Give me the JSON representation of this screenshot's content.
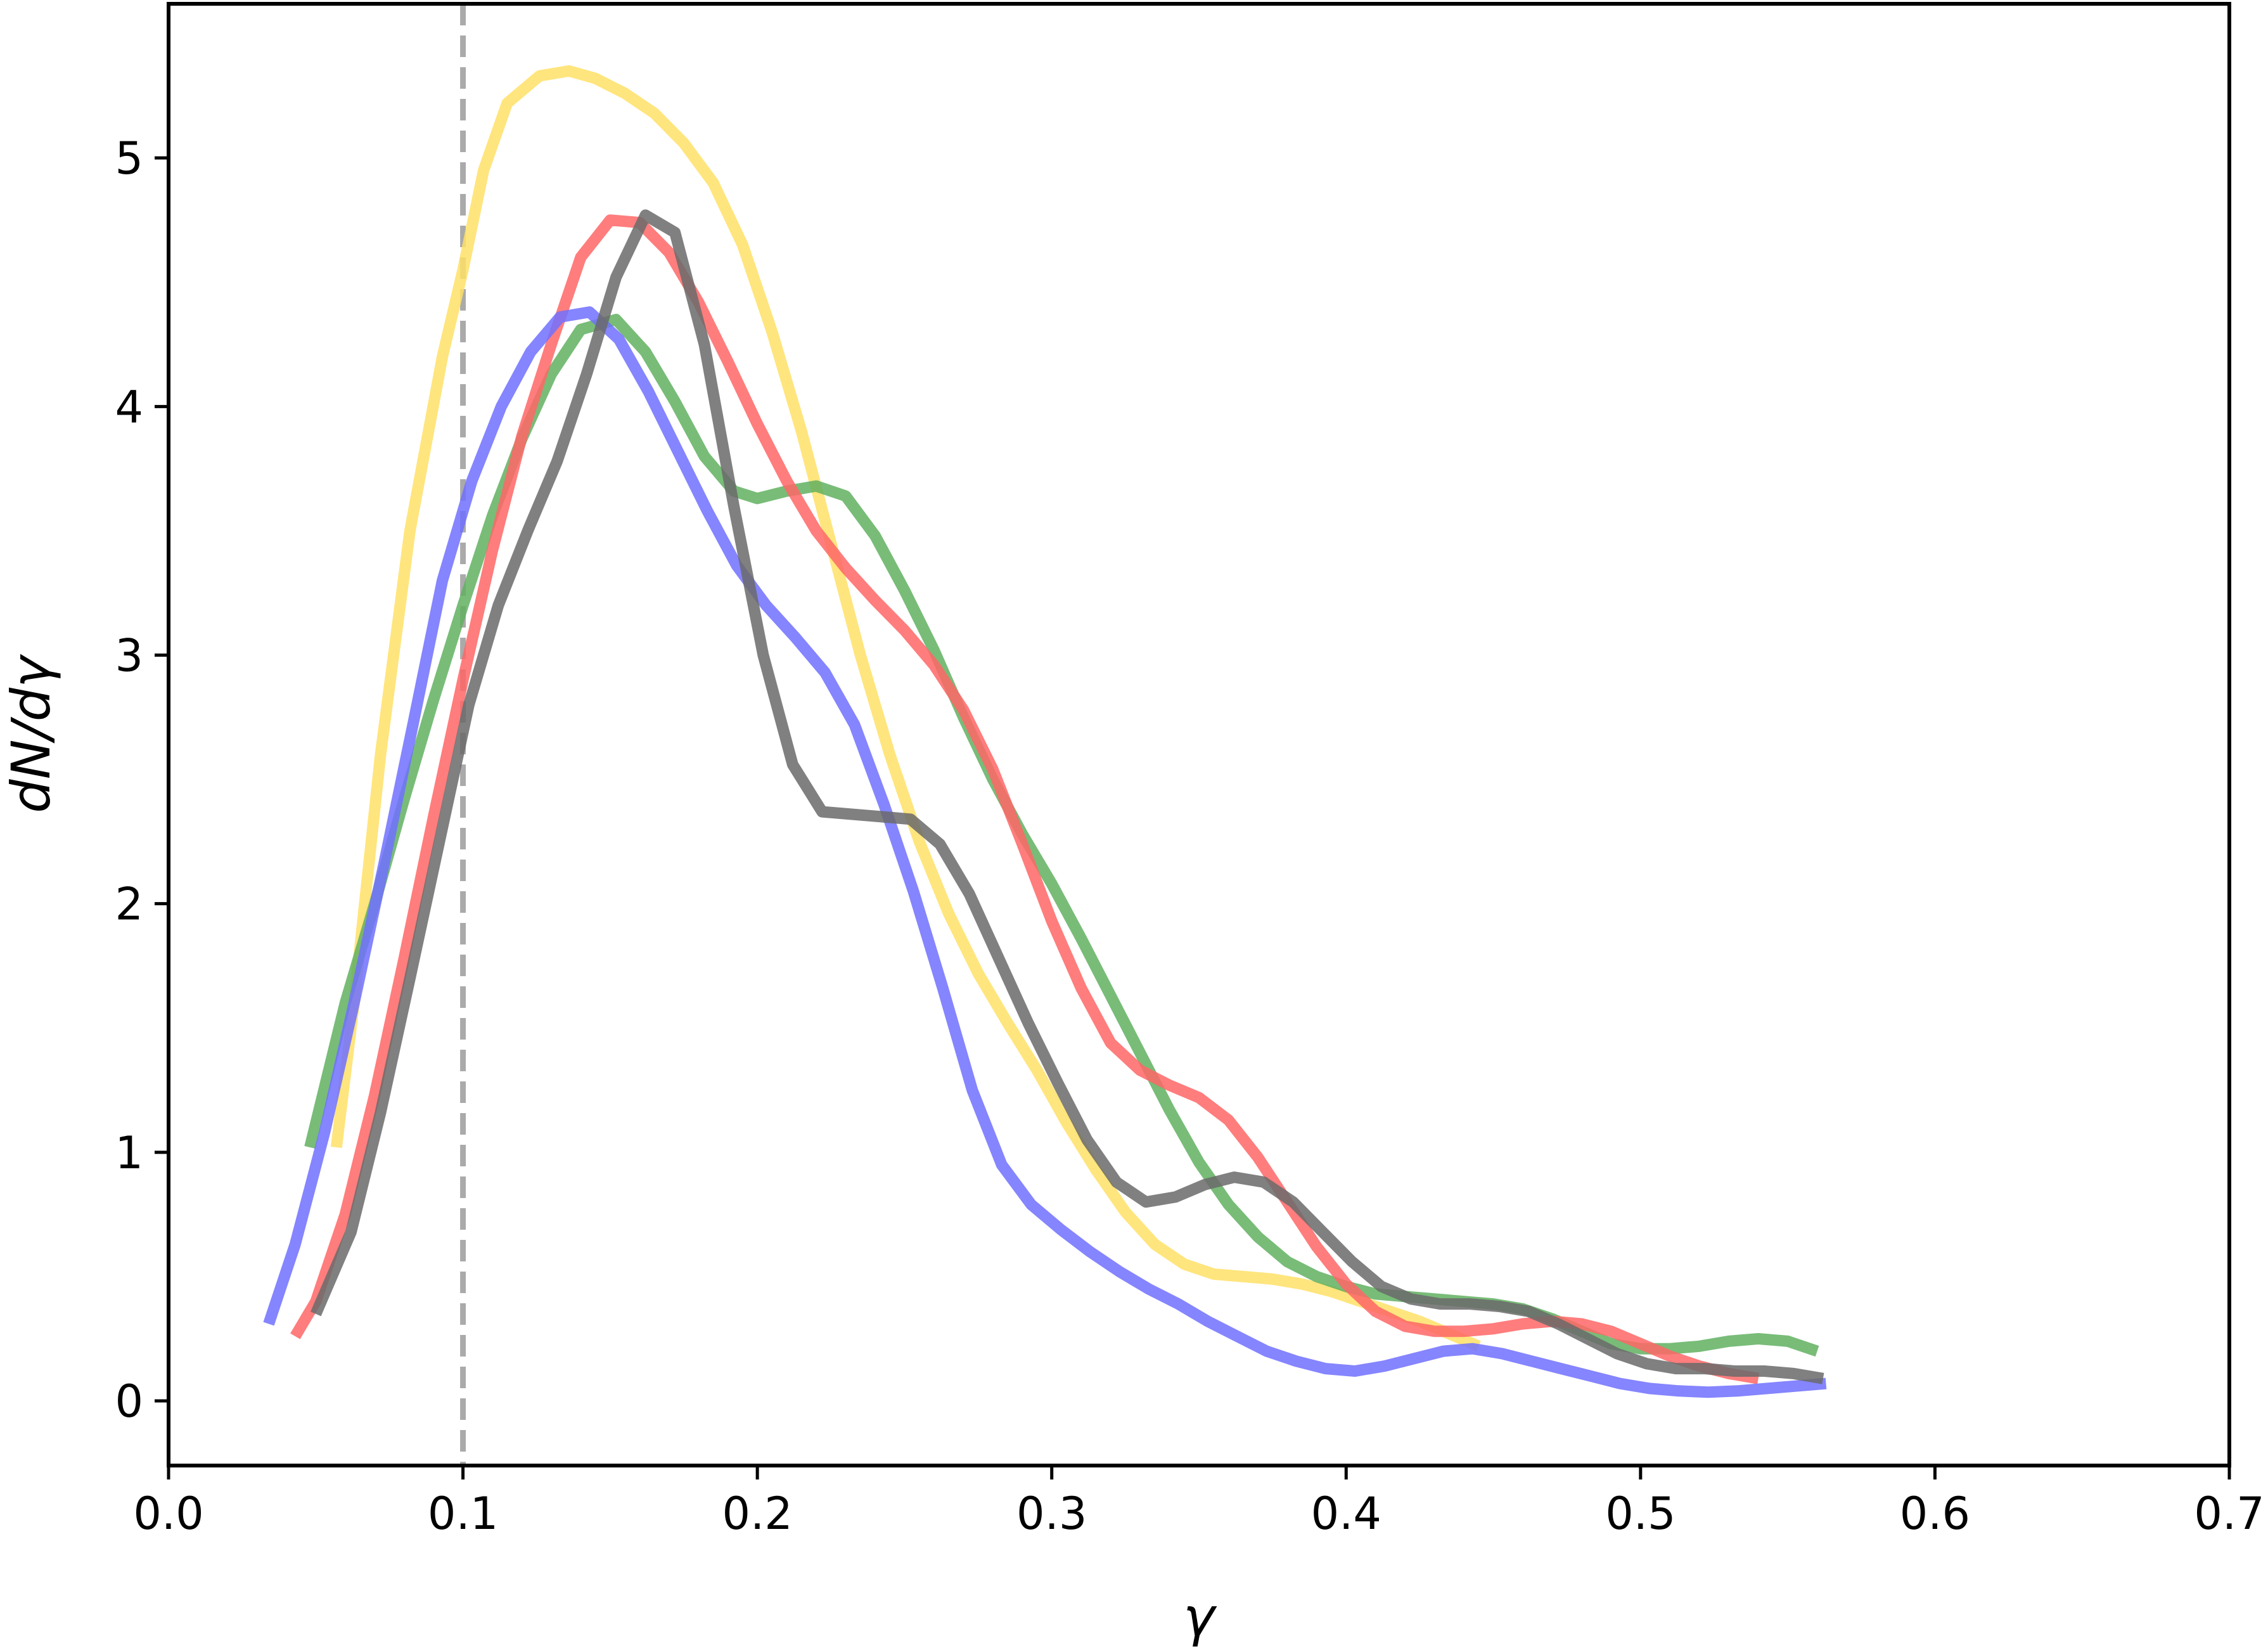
{
  "chart_data": {
    "type": "line",
    "title": "",
    "xlabel": "γ",
    "ylabel": "dN/dγ",
    "xlim": [
      0.0,
      0.7
    ],
    "ylim": [
      -0.26,
      5.62
    ],
    "xticks": [
      "0.0",
      "0.1",
      "0.2",
      "0.3",
      "0.4",
      "0.5",
      "0.6",
      "0.7"
    ],
    "yticks": [
      "0",
      "1",
      "2",
      "3",
      "4",
      "5"
    ],
    "grid": false,
    "legend": false,
    "reference_line": {
      "x": 0.1,
      "style": "dashed",
      "color": "#aaaaaa"
    },
    "series": [
      {
        "color": "#ffe066",
        "points": [
          [
            0.057,
            1.02
          ],
          [
            0.063,
            1.6
          ],
          [
            0.072,
            2.6
          ],
          [
            0.082,
            3.5
          ],
          [
            0.093,
            4.2
          ],
          [
            0.1,
            4.55
          ],
          [
            0.107,
            4.95
          ],
          [
            0.115,
            5.22
          ],
          [
            0.126,
            5.33
          ],
          [
            0.136,
            5.35
          ],
          [
            0.145,
            5.32
          ],
          [
            0.155,
            5.26
          ],
          [
            0.165,
            5.18
          ],
          [
            0.175,
            5.06
          ],
          [
            0.185,
            4.9
          ],
          [
            0.195,
            4.65
          ],
          [
            0.205,
            4.3
          ],
          [
            0.215,
            3.9
          ],
          [
            0.225,
            3.45
          ],
          [
            0.235,
            3.0
          ],
          [
            0.245,
            2.6
          ],
          [
            0.255,
            2.25
          ],
          [
            0.265,
            1.96
          ],
          [
            0.275,
            1.72
          ],
          [
            0.285,
            1.52
          ],
          [
            0.295,
            1.33
          ],
          [
            0.305,
            1.12
          ],
          [
            0.315,
            0.93
          ],
          [
            0.325,
            0.76
          ],
          [
            0.335,
            0.63
          ],
          [
            0.345,
            0.55
          ],
          [
            0.355,
            0.51
          ],
          [
            0.365,
            0.5
          ],
          [
            0.375,
            0.49
          ],
          [
            0.385,
            0.47
          ],
          [
            0.395,
            0.44
          ],
          [
            0.405,
            0.4
          ],
          [
            0.415,
            0.36
          ],
          [
            0.425,
            0.32
          ],
          [
            0.435,
            0.27
          ],
          [
            0.445,
            0.22
          ]
        ]
      },
      {
        "color": "#60b060",
        "points": [
          [
            0.048,
            1.02
          ],
          [
            0.06,
            1.6
          ],
          [
            0.07,
            2.0
          ],
          [
            0.08,
            2.42
          ],
          [
            0.09,
            2.82
          ],
          [
            0.1,
            3.2
          ],
          [
            0.11,
            3.56
          ],
          [
            0.12,
            3.87
          ],
          [
            0.13,
            4.13
          ],
          [
            0.14,
            4.31
          ],
          [
            0.152,
            4.35
          ],
          [
            0.162,
            4.22
          ],
          [
            0.172,
            4.02
          ],
          [
            0.182,
            3.8
          ],
          [
            0.192,
            3.66
          ],
          [
            0.2,
            3.63
          ],
          [
            0.21,
            3.66
          ],
          [
            0.22,
            3.68
          ],
          [
            0.23,
            3.64
          ],
          [
            0.24,
            3.48
          ],
          [
            0.25,
            3.26
          ],
          [
            0.26,
            3.02
          ],
          [
            0.27,
            2.75
          ],
          [
            0.28,
            2.5
          ],
          [
            0.29,
            2.28
          ],
          [
            0.3,
            2.08
          ],
          [
            0.31,
            1.86
          ],
          [
            0.32,
            1.63
          ],
          [
            0.33,
            1.4
          ],
          [
            0.34,
            1.17
          ],
          [
            0.35,
            0.96
          ],
          [
            0.36,
            0.79
          ],
          [
            0.37,
            0.66
          ],
          [
            0.38,
            0.56
          ],
          [
            0.39,
            0.5
          ],
          [
            0.4,
            0.46
          ],
          [
            0.41,
            0.43
          ],
          [
            0.42,
            0.42
          ],
          [
            0.43,
            0.41
          ],
          [
            0.44,
            0.4
          ],
          [
            0.45,
            0.39
          ],
          [
            0.46,
            0.37
          ],
          [
            0.47,
            0.33
          ],
          [
            0.48,
            0.28
          ],
          [
            0.49,
            0.23
          ],
          [
            0.5,
            0.21
          ],
          [
            0.51,
            0.21
          ],
          [
            0.52,
            0.22
          ],
          [
            0.53,
            0.24
          ],
          [
            0.54,
            0.25
          ],
          [
            0.55,
            0.24
          ],
          [
            0.56,
            0.2
          ]
        ]
      },
      {
        "color": "#ff6666",
        "points": [
          [
            0.043,
            0.26
          ],
          [
            0.05,
            0.4
          ],
          [
            0.06,
            0.75
          ],
          [
            0.07,
            1.23
          ],
          [
            0.08,
            1.78
          ],
          [
            0.09,
            2.35
          ],
          [
            0.1,
            2.9
          ],
          [
            0.11,
            3.42
          ],
          [
            0.12,
            3.88
          ],
          [
            0.13,
            4.25
          ],
          [
            0.14,
            4.6
          ],
          [
            0.15,
            4.75
          ],
          [
            0.16,
            4.74
          ],
          [
            0.17,
            4.62
          ],
          [
            0.18,
            4.42
          ],
          [
            0.19,
            4.18
          ],
          [
            0.2,
            3.93
          ],
          [
            0.21,
            3.7
          ],
          [
            0.22,
            3.5
          ],
          [
            0.23,
            3.35
          ],
          [
            0.24,
            3.22
          ],
          [
            0.25,
            3.1
          ],
          [
            0.26,
            2.96
          ],
          [
            0.27,
            2.78
          ],
          [
            0.28,
            2.54
          ],
          [
            0.29,
            2.24
          ],
          [
            0.3,
            1.93
          ],
          [
            0.31,
            1.66
          ],
          [
            0.32,
            1.44
          ],
          [
            0.33,
            1.33
          ],
          [
            0.34,
            1.27
          ],
          [
            0.35,
            1.22
          ],
          [
            0.36,
            1.13
          ],
          [
            0.37,
            0.98
          ],
          [
            0.38,
            0.8
          ],
          [
            0.39,
            0.62
          ],
          [
            0.4,
            0.47
          ],
          [
            0.41,
            0.36
          ],
          [
            0.42,
            0.3
          ],
          [
            0.43,
            0.28
          ],
          [
            0.44,
            0.28
          ],
          [
            0.45,
            0.29
          ],
          [
            0.46,
            0.31
          ],
          [
            0.47,
            0.32
          ],
          [
            0.48,
            0.31
          ],
          [
            0.49,
            0.28
          ],
          [
            0.5,
            0.23
          ],
          [
            0.51,
            0.18
          ],
          [
            0.52,
            0.14
          ],
          [
            0.53,
            0.11
          ],
          [
            0.54,
            0.09
          ]
        ]
      },
      {
        "color": "#7070ff",
        "points": [
          [
            0.034,
            0.31
          ],
          [
            0.043,
            0.63
          ],
          [
            0.053,
            1.08
          ],
          [
            0.063,
            1.6
          ],
          [
            0.073,
            2.15
          ],
          [
            0.083,
            2.72
          ],
          [
            0.093,
            3.3
          ],
          [
            0.103,
            3.7
          ],
          [
            0.113,
            4.0
          ],
          [
            0.123,
            4.22
          ],
          [
            0.133,
            4.36
          ],
          [
            0.143,
            4.38
          ],
          [
            0.153,
            4.27
          ],
          [
            0.163,
            4.06
          ],
          [
            0.173,
            3.82
          ],
          [
            0.183,
            3.58
          ],
          [
            0.193,
            3.36
          ],
          [
            0.203,
            3.2
          ],
          [
            0.213,
            3.07
          ],
          [
            0.223,
            2.93
          ],
          [
            0.233,
            2.72
          ],
          [
            0.243,
            2.4
          ],
          [
            0.253,
            2.05
          ],
          [
            0.263,
            1.66
          ],
          [
            0.273,
            1.25
          ],
          [
            0.283,
            0.95
          ],
          [
            0.293,
            0.79
          ],
          [
            0.303,
            0.69
          ],
          [
            0.313,
            0.6
          ],
          [
            0.323,
            0.52
          ],
          [
            0.333,
            0.45
          ],
          [
            0.343,
            0.39
          ],
          [
            0.353,
            0.32
          ],
          [
            0.363,
            0.26
          ],
          [
            0.373,
            0.2
          ],
          [
            0.383,
            0.16
          ],
          [
            0.393,
            0.13
          ],
          [
            0.403,
            0.12
          ],
          [
            0.413,
            0.14
          ],
          [
            0.423,
            0.17
          ],
          [
            0.433,
            0.2
          ],
          [
            0.443,
            0.21
          ],
          [
            0.453,
            0.19
          ],
          [
            0.463,
            0.16
          ],
          [
            0.473,
            0.13
          ],
          [
            0.483,
            0.1
          ],
          [
            0.493,
            0.07
          ],
          [
            0.503,
            0.05
          ],
          [
            0.513,
            0.04
          ],
          [
            0.523,
            0.035
          ],
          [
            0.533,
            0.04
          ],
          [
            0.543,
            0.05
          ],
          [
            0.553,
            0.06
          ],
          [
            0.563,
            0.07
          ]
        ]
      },
      {
        "color": "#6a6a6a",
        "points": [
          [
            0.05,
            0.35
          ],
          [
            0.062,
            0.68
          ],
          [
            0.072,
            1.16
          ],
          [
            0.082,
            1.7
          ],
          [
            0.092,
            2.25
          ],
          [
            0.102,
            2.8
          ],
          [
            0.112,
            3.2
          ],
          [
            0.122,
            3.5
          ],
          [
            0.132,
            3.78
          ],
          [
            0.142,
            4.13
          ],
          [
            0.152,
            4.52
          ],
          [
            0.162,
            4.77
          ],
          [
            0.172,
            4.7
          ],
          [
            0.182,
            4.25
          ],
          [
            0.192,
            3.6
          ],
          [
            0.202,
            3.0
          ],
          [
            0.212,
            2.56
          ],
          [
            0.222,
            2.37
          ],
          [
            0.232,
            2.36
          ],
          [
            0.242,
            2.35
          ],
          [
            0.252,
            2.34
          ],
          [
            0.262,
            2.24
          ],
          [
            0.272,
            2.04
          ],
          [
            0.282,
            1.78
          ],
          [
            0.292,
            1.52
          ],
          [
            0.302,
            1.28
          ],
          [
            0.312,
            1.05
          ],
          [
            0.322,
            0.88
          ],
          [
            0.332,
            0.8
          ],
          [
            0.342,
            0.82
          ],
          [
            0.352,
            0.87
          ],
          [
            0.362,
            0.9
          ],
          [
            0.372,
            0.88
          ],
          [
            0.382,
            0.8
          ],
          [
            0.392,
            0.68
          ],
          [
            0.402,
            0.56
          ],
          [
            0.412,
            0.46
          ],
          [
            0.422,
            0.41
          ],
          [
            0.432,
            0.39
          ],
          [
            0.442,
            0.39
          ],
          [
            0.452,
            0.38
          ],
          [
            0.462,
            0.36
          ],
          [
            0.472,
            0.31
          ],
          [
            0.482,
            0.25
          ],
          [
            0.492,
            0.19
          ],
          [
            0.502,
            0.15
          ],
          [
            0.512,
            0.13
          ],
          [
            0.522,
            0.13
          ],
          [
            0.532,
            0.12
          ],
          [
            0.542,
            0.12
          ],
          [
            0.552,
            0.11
          ],
          [
            0.562,
            0.09
          ]
        ]
      }
    ]
  }
}
